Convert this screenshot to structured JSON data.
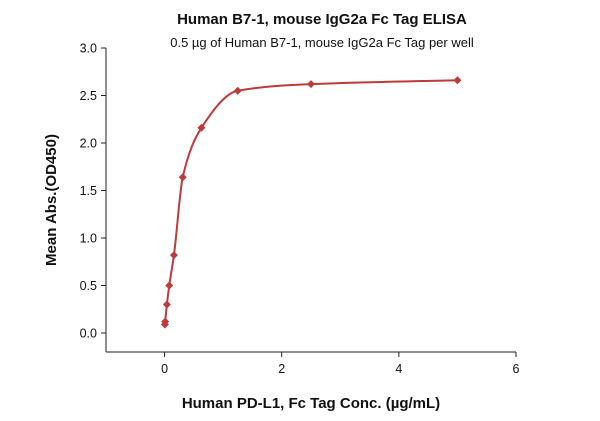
{
  "chart_data": {
    "type": "scatter",
    "title": "Human B7-1, mouse IgG2a Fc Tag ELISA",
    "subtitle": "0.5 µg of Human B7-1, mouse IgG2a Fc Tag per well",
    "xlabel": "Human PD-L1, Fc Tag Conc. (µg/mL)",
    "ylabel": "Mean Abs.(OD450)",
    "xlim": [
      -1,
      6
    ],
    "ylim": [
      -0.2,
      3.0
    ],
    "x_ticks": [
      0,
      2,
      4,
      6
    ],
    "y_ticks": [
      0.0,
      0.5,
      1.0,
      1.5,
      2.0,
      2.5,
      3.0
    ],
    "x_tick_labels": [
      "0",
      "2",
      "4",
      "6"
    ],
    "y_tick_labels": [
      "0.0",
      "0.5",
      "1.0",
      "1.5",
      "2.0",
      "2.5",
      "3.0"
    ],
    "grid": false,
    "color": "#c0393b",
    "points": [
      {
        "x": 0.005,
        "y": 0.09
      },
      {
        "x": 0.01,
        "y": 0.12
      },
      {
        "x": 0.04,
        "y": 0.3
      },
      {
        "x": 0.08,
        "y": 0.5
      },
      {
        "x": 0.16,
        "y": 0.82
      },
      {
        "x": 0.31,
        "y": 1.64
      },
      {
        "x": 0.63,
        "y": 2.16
      },
      {
        "x": 1.25,
        "y": 2.55
      },
      {
        "x": 2.5,
        "y": 2.62
      },
      {
        "x": 5.0,
        "y": 2.66
      }
    ]
  }
}
